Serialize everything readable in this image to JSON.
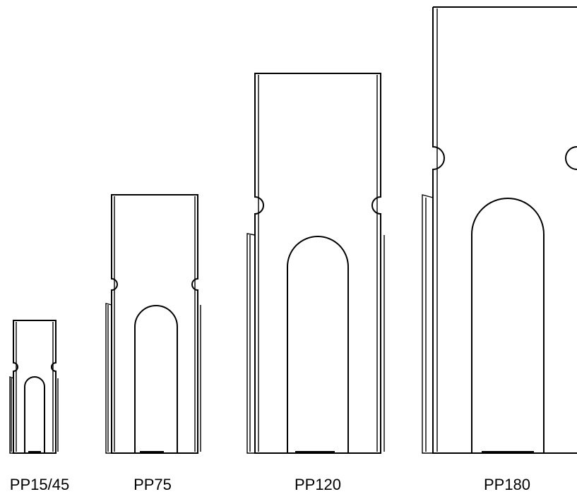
{
  "products": [
    {
      "label": "PP15/45"
    },
    {
      "label": "PP75"
    },
    {
      "label": "PP120"
    },
    {
      "label": "PP180"
    }
  ]
}
